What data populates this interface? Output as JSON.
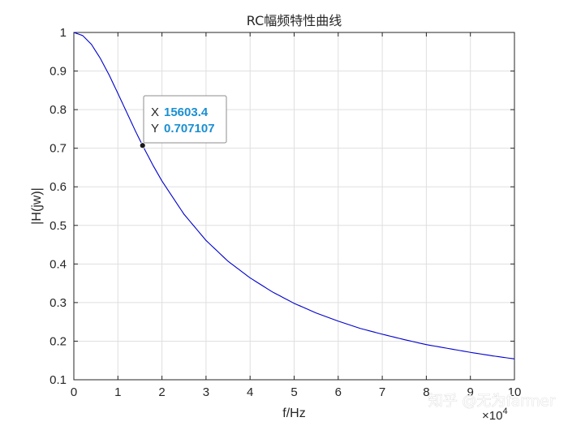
{
  "chart_data": {
    "type": "line",
    "title": "RC幅频特性曲线",
    "xlabel": "f/Hz",
    "ylabel": "|H(jw)|",
    "x_exponent_label": "×10",
    "x_exponent_power": "4",
    "xlim": [
      0,
      100000
    ],
    "ylim": [
      0.1,
      1
    ],
    "grid": true,
    "x_ticks": [
      0,
      10000,
      20000,
      30000,
      40000,
      50000,
      60000,
      70000,
      80000,
      90000,
      100000
    ],
    "x_tick_labels": [
      "0",
      "1",
      "2",
      "3",
      "4",
      "5",
      "6",
      "7",
      "8",
      "9",
      "10"
    ],
    "y_ticks": [
      0.1,
      0.2,
      0.3,
      0.4,
      0.5,
      0.6,
      0.7,
      0.8,
      0.9,
      1
    ],
    "y_tick_labels": [
      "0.1",
      "0.2",
      "0.3",
      "0.4",
      "0.5",
      "0.6",
      "0.7",
      "0.8",
      "0.9",
      "1"
    ],
    "series": [
      {
        "color": "#0000cd",
        "x": [
          0,
          2000,
          4000,
          6000,
          8000,
          10000,
          12000,
          14000,
          15603.4,
          18000,
          20000,
          25000,
          30000,
          35000,
          40000,
          45000,
          50000,
          55000,
          60000,
          65000,
          70000,
          75000,
          80000,
          85000,
          90000,
          95000,
          100000
        ],
        "y": [
          1,
          0.992,
          0.969,
          0.933,
          0.89,
          0.842,
          0.793,
          0.744,
          0.707107,
          0.655,
          0.615,
          0.529,
          0.461,
          0.407,
          0.364,
          0.328,
          0.298,
          0.273,
          0.252,
          0.233,
          0.218,
          0.204,
          0.191,
          0.181,
          0.171,
          0.162,
          0.154
        ]
      }
    ],
    "datatip": {
      "x_key": "X",
      "x_value": "15603.4",
      "y_key": "Y",
      "y_value": "0.707107",
      "point_x": 15603.4,
      "point_y": 0.707107
    }
  },
  "watermark": "知乎 @无为farmer",
  "colors": {
    "line": "#0000cd",
    "grid": "#dfdfdf",
    "axis": "#262626",
    "datatip_value": "#1a8fd1"
  }
}
